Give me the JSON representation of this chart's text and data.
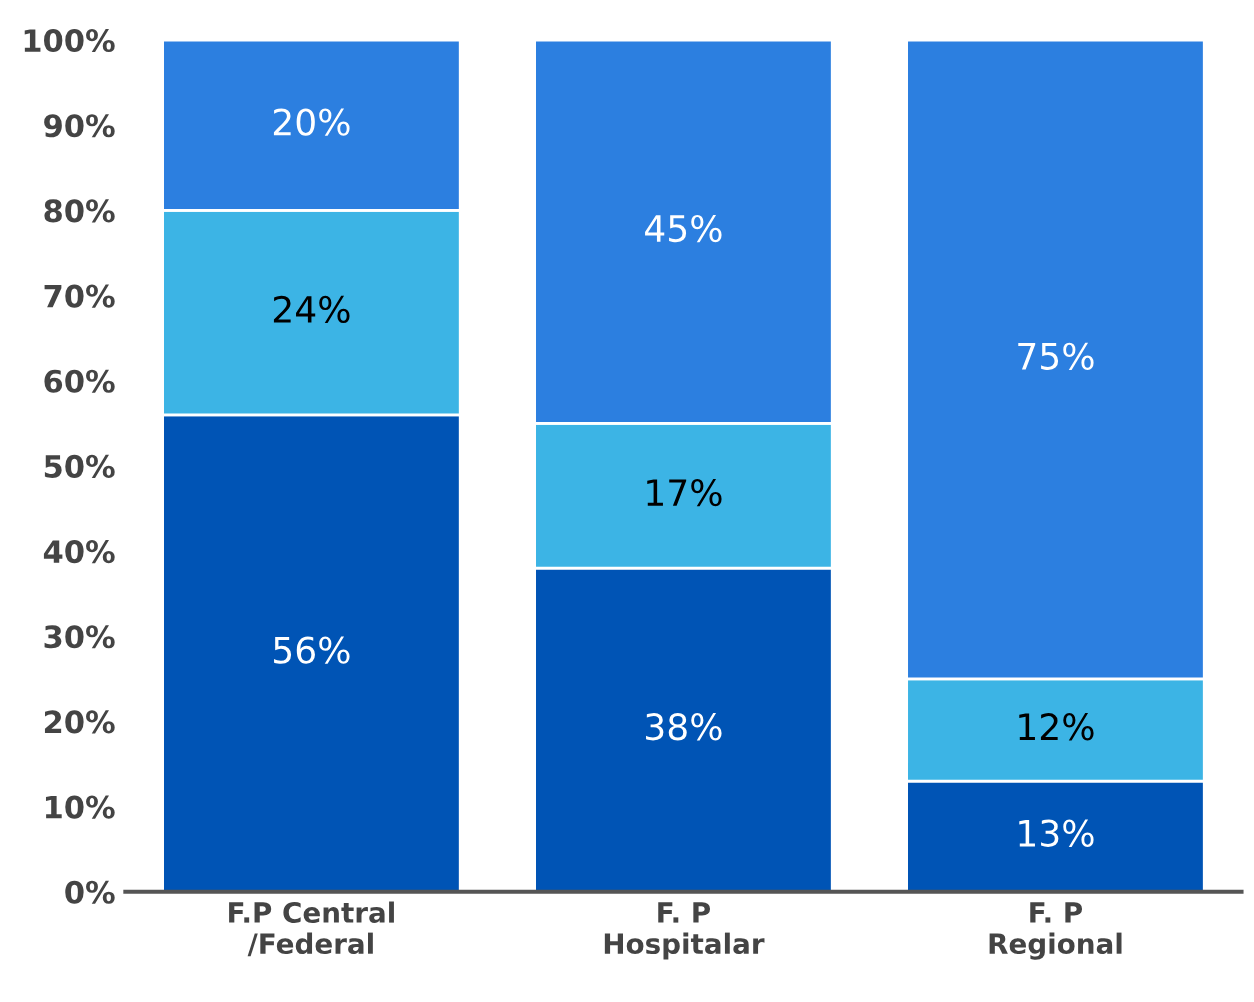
{
  "chart_data": {
    "type": "bar",
    "stacked": true,
    "categories": [
      "F.P Central\n/Federal",
      "F. P\nHospitalar",
      "F. P\nRegional"
    ],
    "series": [
      {
        "color": "#0054b5",
        "values": [
          56,
          38,
          13
        ],
        "value_labels": [
          "56%",
          "38%",
          "13%"
        ]
      },
      {
        "color": "#3cb4e5",
        "values": [
          24,
          17,
          12
        ],
        "value_labels": [
          "24%",
          "17%",
          "12%"
        ]
      },
      {
        "color": "#2c7fe0",
        "values": [
          20,
          45,
          75
        ],
        "value_labels": [
          "20%",
          "45%",
          "75%"
        ]
      }
    ],
    "ylim": [
      0,
      100
    ],
    "yticks": [
      {
        "value": 0,
        "label": "0%"
      },
      {
        "value": 10,
        "label": "10%"
      },
      {
        "value": 20,
        "label": "20%"
      },
      {
        "value": 30,
        "label": "30%"
      },
      {
        "value": 40,
        "label": "40%"
      },
      {
        "value": 50,
        "label": "50%"
      },
      {
        "value": 60,
        "label": "60%"
      },
      {
        "value": 70,
        "label": "70%"
      },
      {
        "value": 80,
        "label": "80%"
      },
      {
        "value": 90,
        "label": "90%"
      },
      {
        "value": 100,
        "label": "100%"
      }
    ],
    "grid": false,
    "legend": false
  }
}
